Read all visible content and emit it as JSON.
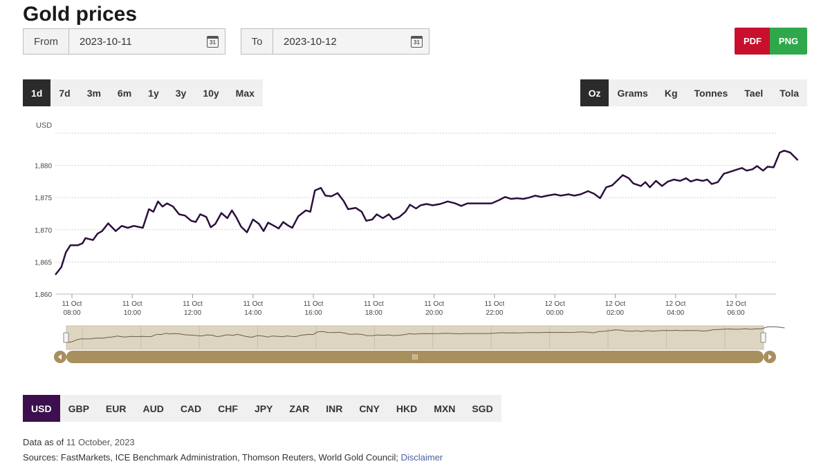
{
  "page": {
    "title": "Gold prices"
  },
  "date_range": {
    "from_label": "From",
    "from_value": "2023-10-11",
    "to_label": "To",
    "to_value": "2023-10-12",
    "calendar_glyph": "31"
  },
  "export": {
    "pdf_label": "PDF",
    "png_label": "PNG"
  },
  "ranges": [
    "1d",
    "7d",
    "3m",
    "6m",
    "1y",
    "3y",
    "10y",
    "Max"
  ],
  "ranges_active": "1d",
  "units": [
    "Oz",
    "Grams",
    "Kg",
    "Tonnes",
    "Tael",
    "Tola"
  ],
  "units_active": "Oz",
  "currencies": [
    "USD",
    "GBP",
    "EUR",
    "AUD",
    "CAD",
    "CHF",
    "JPY",
    "ZAR",
    "INR",
    "CNY",
    "HKD",
    "MXN",
    "SGD"
  ],
  "currencies_active": "USD",
  "footer": {
    "data_as_of_prefix": "Data as of",
    "data_as_of_date": "11 October, 2023",
    "sources": "Sources: FastMarkets, ICE Benchmark Administration, Thomson Reuters, World Gold Council;",
    "disclaimer_label": "Disclaimer"
  },
  "colors": {
    "line": "#2a0f3d",
    "navigator_bg": "#ddd5c0",
    "scrollbar": "#a88f5e",
    "currency_active": "#3d0f4f",
    "pdf": "#c8102e",
    "png": "#2ea84a"
  },
  "chart_data": {
    "type": "line",
    "ylabel": "USD",
    "y_ticks": [
      "1,860",
      "1,865",
      "1,870",
      "1,875",
      "1,880"
    ],
    "ylim": [
      1860,
      1885
    ],
    "x_ticks": [
      {
        "day": "11 Oct",
        "time": "08:00",
        "h": 0
      },
      {
        "day": "11 Oct",
        "time": "10:00",
        "h": 2
      },
      {
        "day": "11 Oct",
        "time": "12:00",
        "h": 4
      },
      {
        "day": "11 Oct",
        "time": "14:00",
        "h": 6
      },
      {
        "day": "11 Oct",
        "time": "16:00",
        "h": 8
      },
      {
        "day": "11 Oct",
        "time": "18:00",
        "h": 10
      },
      {
        "day": "11 Oct",
        "time": "20:00",
        "h": 12
      },
      {
        "day": "11 Oct",
        "time": "22:00",
        "h": 14
      },
      {
        "day": "12 Oct",
        "time": "00:00",
        "h": 16
      },
      {
        "day": "12 Oct",
        "time": "02:00",
        "h": 18
      },
      {
        "day": "12 Oct",
        "time": "04:00",
        "h": 20
      },
      {
        "day": "12 Oct",
        "time": "06:00",
        "h": 22
      }
    ],
    "grid": true,
    "series": [
      {
        "points": [
          [
            -0.55,
            1863.0
          ],
          [
            -0.35,
            1864.2
          ],
          [
            -0.2,
            1866.5
          ],
          [
            -0.05,
            1867.6
          ],
          [
            0.2,
            1867.6
          ],
          [
            0.35,
            1867.9
          ],
          [
            0.45,
            1868.7
          ],
          [
            0.7,
            1868.4
          ],
          [
            0.85,
            1869.4
          ],
          [
            1.0,
            1869.8
          ],
          [
            1.2,
            1871.0
          ],
          [
            1.45,
            1869.8
          ],
          [
            1.65,
            1870.6
          ],
          [
            1.85,
            1870.3
          ],
          [
            2.05,
            1870.6
          ],
          [
            2.35,
            1870.3
          ],
          [
            2.55,
            1873.2
          ],
          [
            2.7,
            1872.8
          ],
          [
            2.85,
            1874.4
          ],
          [
            3.0,
            1873.6
          ],
          [
            3.15,
            1874.1
          ],
          [
            3.35,
            1873.6
          ],
          [
            3.55,
            1872.4
          ],
          [
            3.75,
            1872.2
          ],
          [
            3.95,
            1871.4
          ],
          [
            4.1,
            1871.2
          ],
          [
            4.25,
            1872.4
          ],
          [
            4.45,
            1872.0
          ],
          [
            4.6,
            1870.4
          ],
          [
            4.75,
            1870.9
          ],
          [
            4.95,
            1872.6
          ],
          [
            5.15,
            1871.8
          ],
          [
            5.3,
            1873.0
          ],
          [
            5.45,
            1871.9
          ],
          [
            5.6,
            1870.5
          ],
          [
            5.8,
            1869.6
          ],
          [
            6.0,
            1871.6
          ],
          [
            6.2,
            1870.9
          ],
          [
            6.35,
            1869.8
          ],
          [
            6.5,
            1871.1
          ],
          [
            6.7,
            1870.6
          ],
          [
            6.85,
            1870.2
          ],
          [
            7.0,
            1871.2
          ],
          [
            7.15,
            1870.7
          ],
          [
            7.3,
            1870.3
          ],
          [
            7.5,
            1872.1
          ],
          [
            7.75,
            1873.0
          ],
          [
            7.9,
            1872.8
          ],
          [
            8.05,
            1876.1
          ],
          [
            8.25,
            1876.5
          ],
          [
            8.4,
            1875.3
          ],
          [
            8.6,
            1875.2
          ],
          [
            8.8,
            1875.7
          ],
          [
            9.0,
            1874.5
          ],
          [
            9.15,
            1873.2
          ],
          [
            9.4,
            1873.4
          ],
          [
            9.6,
            1872.8
          ],
          [
            9.75,
            1871.4
          ],
          [
            9.95,
            1871.6
          ],
          [
            10.1,
            1872.4
          ],
          [
            10.3,
            1871.8
          ],
          [
            10.5,
            1872.4
          ],
          [
            10.65,
            1871.6
          ],
          [
            10.85,
            1872.0
          ],
          [
            11.05,
            1872.8
          ],
          [
            11.2,
            1873.9
          ],
          [
            11.4,
            1873.3
          ],
          [
            11.55,
            1873.8
          ],
          [
            11.75,
            1874.0
          ],
          [
            11.95,
            1873.8
          ],
          [
            12.2,
            1874.0
          ],
          [
            12.45,
            1874.4
          ],
          [
            12.7,
            1874.1
          ],
          [
            12.9,
            1873.7
          ],
          [
            13.1,
            1874.1
          ],
          [
            13.5,
            1874.1
          ],
          [
            13.9,
            1874.1
          ],
          [
            14.15,
            1874.6
          ],
          [
            14.35,
            1875.1
          ],
          [
            14.55,
            1874.8
          ],
          [
            14.75,
            1874.9
          ],
          [
            14.95,
            1874.8
          ],
          [
            15.15,
            1875.0
          ],
          [
            15.35,
            1875.3
          ],
          [
            15.55,
            1875.1
          ],
          [
            15.75,
            1875.3
          ],
          [
            16.0,
            1875.5
          ],
          [
            16.2,
            1875.3
          ],
          [
            16.45,
            1875.5
          ],
          [
            16.65,
            1875.3
          ],
          [
            16.85,
            1875.5
          ],
          [
            17.1,
            1876.0
          ],
          [
            17.3,
            1875.6
          ],
          [
            17.5,
            1874.9
          ],
          [
            17.7,
            1876.6
          ],
          [
            17.9,
            1876.9
          ],
          [
            18.1,
            1877.8
          ],
          [
            18.25,
            1878.5
          ],
          [
            18.45,
            1878.0
          ],
          [
            18.6,
            1877.2
          ],
          [
            18.85,
            1876.8
          ],
          [
            19.0,
            1877.4
          ],
          [
            19.15,
            1876.6
          ],
          [
            19.35,
            1877.6
          ],
          [
            19.55,
            1876.8
          ],
          [
            19.75,
            1877.5
          ],
          [
            19.95,
            1877.8
          ],
          [
            20.15,
            1877.6
          ],
          [
            20.35,
            1878.0
          ],
          [
            20.5,
            1877.5
          ],
          [
            20.7,
            1877.8
          ],
          [
            20.9,
            1877.6
          ],
          [
            21.05,
            1877.8
          ],
          [
            21.2,
            1877.1
          ],
          [
            21.4,
            1877.4
          ],
          [
            21.6,
            1878.7
          ],
          [
            21.8,
            1879.0
          ],
          [
            22.0,
            1879.3
          ],
          [
            22.2,
            1879.6
          ],
          [
            22.35,
            1879.2
          ],
          [
            22.55,
            1879.4
          ],
          [
            22.7,
            1879.9
          ],
          [
            22.9,
            1879.2
          ],
          [
            23.05,
            1879.8
          ],
          [
            23.25,
            1879.7
          ],
          [
            23.45,
            1882.0
          ],
          [
            23.6,
            1882.3
          ],
          [
            23.8,
            1882.0
          ],
          [
            23.95,
            1881.3
          ],
          [
            24.05,
            1880.8
          ]
        ]
      }
    ]
  }
}
